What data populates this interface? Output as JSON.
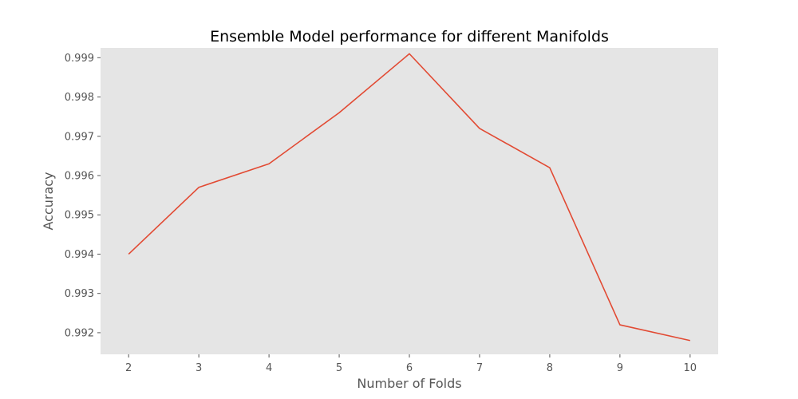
{
  "chart_data": {
    "type": "line",
    "title": "Ensemble Model performance for different Manifolds",
    "xlabel": "Number of Folds",
    "ylabel": "Accuracy",
    "x": [
      2,
      3,
      4,
      5,
      6,
      7,
      8,
      9,
      10
    ],
    "series": [
      {
        "values": [
          0.994,
          0.9957,
          0.9963,
          0.9976,
          0.9991,
          0.9972,
          0.9962,
          0.9922,
          0.9918
        ],
        "color": "#E24A33"
      }
    ],
    "xticks": [
      "2",
      "3",
      "4",
      "5",
      "6",
      "7",
      "8",
      "9",
      "10"
    ],
    "yticks": [
      "0.992",
      "0.993",
      "0.994",
      "0.995",
      "0.996",
      "0.997",
      "0.998",
      "0.999"
    ],
    "xlim": [
      1.6,
      10.4
    ],
    "ylim": [
      0.99145,
      0.99925
    ],
    "grid": false,
    "style": "ggplot",
    "plot_background": "#E5E5E5",
    "tick_color": "#555555"
  }
}
